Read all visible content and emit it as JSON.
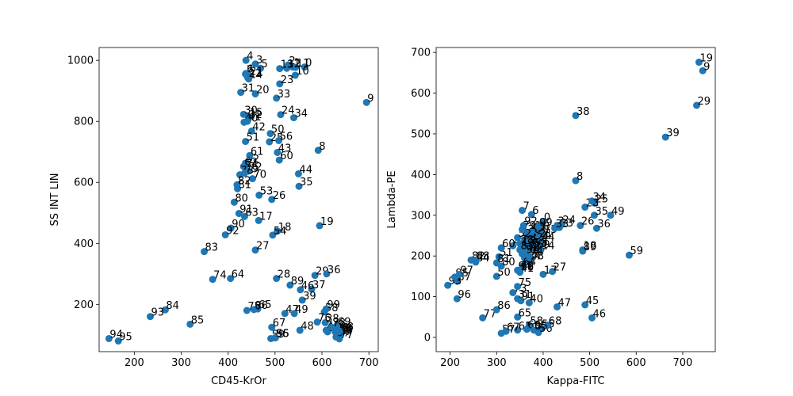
{
  "chart_data": [
    {
      "type": "scatter",
      "title": "",
      "xlabel": "CD45-KrOr",
      "ylabel": "SS INT LIN",
      "xlim": [
        125,
        720
      ],
      "ylim": [
        45,
        1042
      ],
      "xticks": [
        200,
        300,
        400,
        500,
        600,
        700
      ],
      "yticks": [
        200,
        400,
        600,
        800,
        1000
      ],
      "grid": false,
      "point_color": "#1f77b4",
      "points": [
        {
          "label": "0",
          "x": 563,
          "y": 978
        },
        {
          "label": "1",
          "x": 538,
          "y": 978
        },
        {
          "label": "2",
          "x": 528,
          "y": 985
        },
        {
          "label": "3",
          "x": 458,
          "y": 988
        },
        {
          "label": "4",
          "x": 438,
          "y": 1000
        },
        {
          "label": "5",
          "x": 469,
          "y": 974
        },
        {
          "label": "6",
          "x": 438,
          "y": 957
        },
        {
          "label": "7",
          "x": 437,
          "y": 955
        },
        {
          "label": "8",
          "x": 592,
          "y": 705
        },
        {
          "label": "9",
          "x": 695,
          "y": 862
        },
        {
          "label": "10",
          "x": 543,
          "y": 951
        },
        {
          "label": "11",
          "x": 544,
          "y": 977
        },
        {
          "label": "12",
          "x": 525,
          "y": 974
        },
        {
          "label": "13",
          "x": 510,
          "y": 973
        },
        {
          "label": "14",
          "x": 444,
          "y": 939
        },
        {
          "label": "15",
          "x": 444,
          "y": 815
        },
        {
          "label": "16",
          "x": 612,
          "y": 110
        },
        {
          "label": "17",
          "x": 465,
          "y": 475
        },
        {
          "label": "18",
          "x": 505,
          "y": 440
        },
        {
          "label": "19",
          "x": 595,
          "y": 458
        },
        {
          "label": "20",
          "x": 458,
          "y": 890
        },
        {
          "label": "21",
          "x": 445,
          "y": 950
        },
        {
          "label": "22",
          "x": 442,
          "y": 943
        },
        {
          "label": "23",
          "x": 510,
          "y": 923
        },
        {
          "label": "24",
          "x": 512,
          "y": 822
        },
        {
          "label": "25",
          "x": 488,
          "y": 733
        },
        {
          "label": "26",
          "x": 493,
          "y": 544
        },
        {
          "label": "27",
          "x": 458,
          "y": 378
        },
        {
          "label": "28",
          "x": 503,
          "y": 285
        },
        {
          "label": "29",
          "x": 585,
          "y": 295
        },
        {
          "label": "30",
          "x": 433,
          "y": 823
        },
        {
          "label": "31",
          "x": 427,
          "y": 895
        },
        {
          "label": "32",
          "x": 443,
          "y": 808
        },
        {
          "label": "33",
          "x": 503,
          "y": 876
        },
        {
          "label": "34",
          "x": 540,
          "y": 812
        },
        {
          "label": "35",
          "x": 551,
          "y": 587
        },
        {
          "label": "36",
          "x": 610,
          "y": 300
        },
        {
          "label": "37",
          "x": 578,
          "y": 250
        },
        {
          "label": "38",
          "x": 607,
          "y": 140
        },
        {
          "label": "39",
          "x": 558,
          "y": 214
        },
        {
          "label": "40",
          "x": 434,
          "y": 797
        },
        {
          "label": "41",
          "x": 441,
          "y": 800
        },
        {
          "label": "42",
          "x": 450,
          "y": 768
        },
        {
          "label": "43",
          "x": 505,
          "y": 698
        },
        {
          "label": "44",
          "x": 550,
          "y": 628
        },
        {
          "label": "45",
          "x": 609,
          "y": 115
        },
        {
          "label": "46",
          "x": 554,
          "y": 248
        },
        {
          "label": "47",
          "x": 521,
          "y": 170
        },
        {
          "label": "48",
          "x": 553,
          "y": 115
        },
        {
          "label": "49",
          "x": 541,
          "y": 170
        },
        {
          "label": "50",
          "x": 490,
          "y": 760
        },
        {
          "label": "51",
          "x": 437,
          "y": 734
        },
        {
          "label": "52",
          "x": 437,
          "y": 663
        },
        {
          "label": "53",
          "x": 466,
          "y": 558
        },
        {
          "label": "54",
          "x": 495,
          "y": 427
        },
        {
          "label": "55",
          "x": 501,
          "y": 91
        },
        {
          "label": "56",
          "x": 508,
          "y": 737
        },
        {
          "label": "57",
          "x": 634,
          "y": 97
        },
        {
          "label": "58",
          "x": 605,
          "y": 175
        },
        {
          "label": "59",
          "x": 491,
          "y": 88
        },
        {
          "label": "60",
          "x": 509,
          "y": 673
        },
        {
          "label": "61",
          "x": 446,
          "y": 688
        },
        {
          "label": "62",
          "x": 433,
          "y": 652
        },
        {
          "label": "63",
          "x": 435,
          "y": 488
        },
        {
          "label": "64",
          "x": 405,
          "y": 285
        },
        {
          "label": "65",
          "x": 463,
          "y": 185
        },
        {
          "label": "66",
          "x": 634,
          "y": 105
        },
        {
          "label": "67",
          "x": 493,
          "y": 125
        },
        {
          "label": "68",
          "x": 628,
          "y": 110
        },
        {
          "label": "69",
          "x": 632,
          "y": 130
        },
        {
          "label": "70",
          "x": 452,
          "y": 612
        },
        {
          "label": "71",
          "x": 436,
          "y": 648
        },
        {
          "label": "72",
          "x": 443,
          "y": 637
        },
        {
          "label": "73",
          "x": 425,
          "y": 625
        },
        {
          "label": "74",
          "x": 367,
          "y": 282
        },
        {
          "label": "75",
          "x": 440,
          "y": 180
        },
        {
          "label": "76",
          "x": 590,
          "y": 142
        },
        {
          "label": "77",
          "x": 637,
          "y": 87
        },
        {
          "label": "78",
          "x": 621,
          "y": 125
        },
        {
          "label": "79",
          "x": 435,
          "y": 630
        },
        {
          "label": "80",
          "x": 413,
          "y": 535
        },
        {
          "label": "81",
          "x": 420,
          "y": 579
        },
        {
          "label": "82",
          "x": 419,
          "y": 592
        },
        {
          "label": "83",
          "x": 349,
          "y": 373
        },
        {
          "label": "84",
          "x": 266,
          "y": 182
        },
        {
          "label": "85",
          "x": 319,
          "y": 135
        },
        {
          "label": "86",
          "x": 455,
          "y": 183
        },
        {
          "label": "87",
          "x": 638,
          "y": 100
        },
        {
          "label": "88",
          "x": 635,
          "y": 108
        },
        {
          "label": "89",
          "x": 532,
          "y": 263
        },
        {
          "label": "90",
          "x": 406,
          "y": 450
        },
        {
          "label": "91",
          "x": 423,
          "y": 498
        },
        {
          "label": "92",
          "x": 394,
          "y": 428
        },
        {
          "label": "93",
          "x": 234,
          "y": 160
        },
        {
          "label": "94",
          "x": 146,
          "y": 88
        },
        {
          "label": "95",
          "x": 166,
          "y": 80
        },
        {
          "label": "96",
          "x": 500,
          "y": 90
        },
        {
          "label": "97",
          "x": 630,
          "y": 93
        },
        {
          "label": "98",
          "x": 638,
          "y": 112
        },
        {
          "label": "99",
          "x": 609,
          "y": 185
        }
      ]
    },
    {
      "type": "scatter",
      "title": "",
      "xlabel": "Kappa-FITC",
      "ylabel": "Lambda-PE",
      "xlim": [
        170,
        770
      ],
      "ylim": [
        -35,
        712
      ],
      "xticks": [
        200,
        300,
        400,
        500,
        600,
        700
      ],
      "yticks": [
        0,
        100,
        200,
        300,
        400,
        500,
        600,
        700
      ],
      "grid": false,
      "point_color": "#1f77b4",
      "points": [
        {
          "label": "0",
          "x": 400,
          "y": 285
        },
        {
          "label": "1",
          "x": 380,
          "y": 265
        },
        {
          "label": "2",
          "x": 390,
          "y": 260
        },
        {
          "label": "3",
          "x": 430,
          "y": 275
        },
        {
          "label": "4",
          "x": 370,
          "y": 250
        },
        {
          "label": "5",
          "x": 360,
          "y": 238
        },
        {
          "label": "6",
          "x": 375,
          "y": 302
        },
        {
          "label": "7",
          "x": 355,
          "y": 312
        },
        {
          "label": "8",
          "x": 470,
          "y": 385
        },
        {
          "label": "9",
          "x": 743,
          "y": 655
        },
        {
          "label": "10",
          "x": 375,
          "y": 248
        },
        {
          "label": "11",
          "x": 385,
          "y": 240
        },
        {
          "label": "12",
          "x": 365,
          "y": 230
        },
        {
          "label": "13",
          "x": 400,
          "y": 255
        },
        {
          "label": "14",
          "x": 395,
          "y": 215
        },
        {
          "label": "15",
          "x": 380,
          "y": 225
        },
        {
          "label": "16",
          "x": 360,
          "y": 215
        },
        {
          "label": "17",
          "x": 400,
          "y": 155
        },
        {
          "label": "18",
          "x": 485,
          "y": 215
        },
        {
          "label": "19",
          "x": 735,
          "y": 676
        },
        {
          "label": "20",
          "x": 385,
          "y": 262
        },
        {
          "label": "21",
          "x": 390,
          "y": 245
        },
        {
          "label": "22",
          "x": 355,
          "y": 228
        },
        {
          "label": "23",
          "x": 435,
          "y": 270
        },
        {
          "label": "24",
          "x": 440,
          "y": 278
        },
        {
          "label": "25",
          "x": 510,
          "y": 330
        },
        {
          "label": "26",
          "x": 480,
          "y": 275
        },
        {
          "label": "27",
          "x": 420,
          "y": 162
        },
        {
          "label": "28",
          "x": 490,
          "y": 320
        },
        {
          "label": "29",
          "x": 730,
          "y": 570
        },
        {
          "label": "30",
          "x": 365,
          "y": 255
        },
        {
          "label": "31",
          "x": 345,
          "y": 95
        },
        {
          "label": "32",
          "x": 370,
          "y": 235
        },
        {
          "label": "33",
          "x": 425,
          "y": 268
        },
        {
          "label": "34",
          "x": 505,
          "y": 335
        },
        {
          "label": "35",
          "x": 510,
          "y": 300
        },
        {
          "label": "36",
          "x": 515,
          "y": 268
        },
        {
          "label": "37",
          "x": 368,
          "y": 220
        },
        {
          "label": "38",
          "x": 470,
          "y": 545
        },
        {
          "label": "39",
          "x": 663,
          "y": 492
        },
        {
          "label": "40",
          "x": 370,
          "y": 85
        },
        {
          "label": "41",
          "x": 350,
          "y": 160
        },
        {
          "label": "42",
          "x": 335,
          "y": 225
        },
        {
          "label": "43",
          "x": 375,
          "y": 260
        },
        {
          "label": "44",
          "x": 395,
          "y": 235
        },
        {
          "label": "45",
          "x": 490,
          "y": 80
        },
        {
          "label": "46",
          "x": 505,
          "y": 48
        },
        {
          "label": "47",
          "x": 430,
          "y": 75
        },
        {
          "label": "48",
          "x": 372,
          "y": 190
        },
        {
          "label": "49",
          "x": 545,
          "y": 300
        },
        {
          "label": "50",
          "x": 300,
          "y": 150
        },
        {
          "label": "51",
          "x": 305,
          "y": 198
        },
        {
          "label": "52",
          "x": 345,
          "y": 245
        },
        {
          "label": "53",
          "x": 380,
          "y": 222
        },
        {
          "label": "54",
          "x": 365,
          "y": 190
        },
        {
          "label": "55",
          "x": 395,
          "y": 22
        },
        {
          "label": "56",
          "x": 390,
          "y": 12
        },
        {
          "label": "57",
          "x": 310,
          "y": 10
        },
        {
          "label": "58",
          "x": 370,
          "y": 30
        },
        {
          "label": "59",
          "x": 585,
          "y": 202
        },
        {
          "label": "60",
          "x": 310,
          "y": 220
        },
        {
          "label": "61",
          "x": 345,
          "y": 18
        },
        {
          "label": "62",
          "x": 375,
          "y": 220
        },
        {
          "label": "63",
          "x": 360,
          "y": 195
        },
        {
          "label": "64",
          "x": 355,
          "y": 175
        },
        {
          "label": "65",
          "x": 345,
          "y": 50
        },
        {
          "label": "66",
          "x": 365,
          "y": 20
        },
        {
          "label": "67",
          "x": 320,
          "y": 15
        },
        {
          "label": "68",
          "x": 410,
          "y": 30
        },
        {
          "label": "69",
          "x": 385,
          "y": 218
        },
        {
          "label": "70",
          "x": 355,
          "y": 205
        },
        {
          "label": "71",
          "x": 360,
          "y": 210
        },
        {
          "label": "72",
          "x": 365,
          "y": 215
        },
        {
          "label": "73",
          "x": 335,
          "y": 110
        },
        {
          "label": "74",
          "x": 370,
          "y": 200
        },
        {
          "label": "75",
          "x": 345,
          "y": 125
        },
        {
          "label": "76",
          "x": 350,
          "y": 165
        },
        {
          "label": "77",
          "x": 270,
          "y": 48
        },
        {
          "label": "78",
          "x": 350,
          "y": 230
        },
        {
          "label": "79",
          "x": 355,
          "y": 265
        },
        {
          "label": "80",
          "x": 310,
          "y": 175
        },
        {
          "label": "81",
          "x": 300,
          "y": 183
        },
        {
          "label": "82",
          "x": 245,
          "y": 190
        },
        {
          "label": "83",
          "x": 350,
          "y": 215
        },
        {
          "label": "84",
          "x": 255,
          "y": 185
        },
        {
          "label": "85",
          "x": 380,
          "y": 18
        },
        {
          "label": "86",
          "x": 300,
          "y": 68
        },
        {
          "label": "87",
          "x": 215,
          "y": 138
        },
        {
          "label": "88",
          "x": 255,
          "y": 190
        },
        {
          "label": "89",
          "x": 485,
          "y": 212
        },
        {
          "label": "90",
          "x": 362,
          "y": 205
        },
        {
          "label": "91",
          "x": 352,
          "y": 90
        },
        {
          "label": "92",
          "x": 358,
          "y": 275
        },
        {
          "label": "93",
          "x": 195,
          "y": 128
        },
        {
          "label": "94",
          "x": 345,
          "y": 165
        },
        {
          "label": "95",
          "x": 210,
          "y": 148
        },
        {
          "label": "96",
          "x": 215,
          "y": 95
        },
        {
          "label": "97",
          "x": 220,
          "y": 155
        },
        {
          "label": "98",
          "x": 350,
          "y": 162
        },
        {
          "label": "99",
          "x": 390,
          "y": 272
        }
      ]
    }
  ]
}
